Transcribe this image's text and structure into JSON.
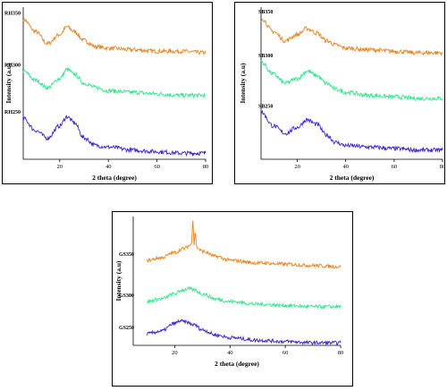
{
  "chart_data": [
    {
      "type": "line",
      "xlabel": "2 theta (degree)",
      "ylabel": "Intensity (a.u)",
      "xlim": [
        5,
        80
      ],
      "xticks": [
        20,
        40,
        60,
        80
      ],
      "colors": {
        "top": "#e8821e",
        "middle": "#2fe58a",
        "bottom": "#3a1fd0"
      },
      "series": [
        {
          "name": "RH350",
          "x": [
            5,
            10,
            15,
            20,
            23,
            26,
            30,
            35,
            40,
            50,
            60,
            70,
            80
          ],
          "y": [
            0.92,
            0.84,
            0.76,
            0.82,
            0.87,
            0.84,
            0.78,
            0.74,
            0.73,
            0.72,
            0.71,
            0.71,
            0.7
          ]
        },
        {
          "name": "RH300",
          "x": [
            5,
            10,
            15,
            20,
            23,
            26,
            30,
            35,
            40,
            50,
            60,
            70,
            80
          ],
          "y": [
            0.58,
            0.52,
            0.47,
            0.53,
            0.59,
            0.56,
            0.5,
            0.47,
            0.45,
            0.44,
            0.43,
            0.42,
            0.42
          ]
        },
        {
          "name": "RH250",
          "x": [
            5,
            10,
            15,
            20,
            23,
            26,
            30,
            35,
            40,
            50,
            60,
            70,
            80
          ],
          "y": [
            0.27,
            0.19,
            0.14,
            0.22,
            0.28,
            0.24,
            0.14,
            0.09,
            0.08,
            0.06,
            0.05,
            0.04,
            0.04
          ]
        }
      ]
    },
    {
      "type": "line",
      "xlabel": "2 theta (degree)",
      "ylabel": "Intensity (a.u)",
      "xlim": [
        5,
        80
      ],
      "xticks": [
        20,
        40,
        60,
        80
      ],
      "colors": {
        "top": "#e8821e",
        "middle": "#2fe58a",
        "bottom": "#3a1fd0"
      },
      "series": [
        {
          "name": "SB350",
          "x": [
            5,
            10,
            15,
            20,
            24,
            28,
            32,
            36,
            40,
            50,
            60,
            70,
            80
          ],
          "y": [
            0.93,
            0.84,
            0.78,
            0.82,
            0.86,
            0.83,
            0.78,
            0.75,
            0.73,
            0.72,
            0.71,
            0.7,
            0.7
          ]
        },
        {
          "name": "SB300",
          "x": [
            5,
            10,
            15,
            20,
            24,
            28,
            32,
            36,
            40,
            50,
            60,
            70,
            80
          ],
          "y": [
            0.64,
            0.56,
            0.5,
            0.53,
            0.58,
            0.55,
            0.5,
            0.46,
            0.44,
            0.42,
            0.41,
            0.4,
            0.4
          ]
        },
        {
          "name": "SB250",
          "x": [
            5,
            10,
            15,
            20,
            24,
            28,
            32,
            36,
            40,
            50,
            60,
            70,
            80
          ],
          "y": [
            0.31,
            0.22,
            0.17,
            0.21,
            0.26,
            0.23,
            0.16,
            0.11,
            0.09,
            0.08,
            0.07,
            0.06,
            0.06
          ]
        }
      ]
    },
    {
      "type": "line",
      "xlabel": "2 theta (degree)",
      "ylabel": "Intensity (a.u)",
      "xlim": [
        5,
        80
      ],
      "xticks": [
        20,
        40,
        60,
        80
      ],
      "colors": {
        "top": "#e8821e",
        "middle": "#2fe58a",
        "bottom": "#3a1fd0"
      },
      "series": [
        {
          "name": "GS350",
          "x": [
            10,
            15,
            20,
            23,
            26,
            26.6,
            27,
            27.4,
            28,
            30,
            35,
            40,
            50,
            60,
            70,
            80
          ],
          "y": [
            0.66,
            0.68,
            0.72,
            0.75,
            0.78,
            0.98,
            0.78,
            0.88,
            0.76,
            0.73,
            0.69,
            0.66,
            0.64,
            0.63,
            0.62,
            0.61
          ]
        },
        {
          "name": "GS300",
          "x": [
            10,
            15,
            20,
            23,
            25,
            27,
            30,
            35,
            40,
            50,
            60,
            70,
            80
          ],
          "y": [
            0.34,
            0.36,
            0.4,
            0.43,
            0.44,
            0.43,
            0.4,
            0.36,
            0.34,
            0.32,
            0.31,
            0.3,
            0.3
          ]
        },
        {
          "name": "GS250",
          "x": [
            10,
            15,
            20,
            22,
            24,
            27,
            30,
            35,
            40,
            50,
            60,
            70,
            80
          ],
          "y": [
            0.09,
            0.11,
            0.17,
            0.19,
            0.18,
            0.16,
            0.12,
            0.08,
            0.06,
            0.04,
            0.03,
            0.02,
            0.02
          ]
        }
      ]
    }
  ]
}
